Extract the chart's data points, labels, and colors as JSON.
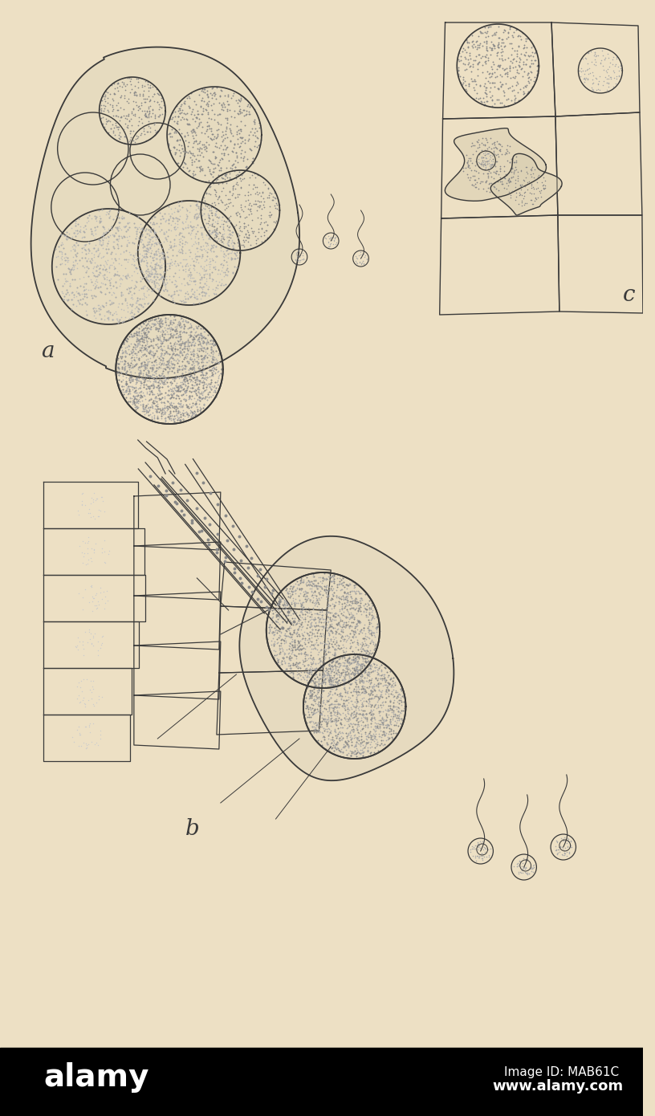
{
  "background_color": "#e8dfc8",
  "paper_color": "#ede0c4",
  "line_color": "#3a3a3a",
  "figure_width": 8.16,
  "figure_height": 13.9,
  "dpi": 100,
  "label_a": "a",
  "label_b": "b",
  "label_c": "c",
  "watermark_top": "Image ID: MAB61C",
  "watermark_bot": "www.alamy.com",
  "alamy_text": "alamy",
  "bottom_bar_color": "#000000",
  "stipple_color": "#888888",
  "stipple_color2": "#aaaaaa"
}
